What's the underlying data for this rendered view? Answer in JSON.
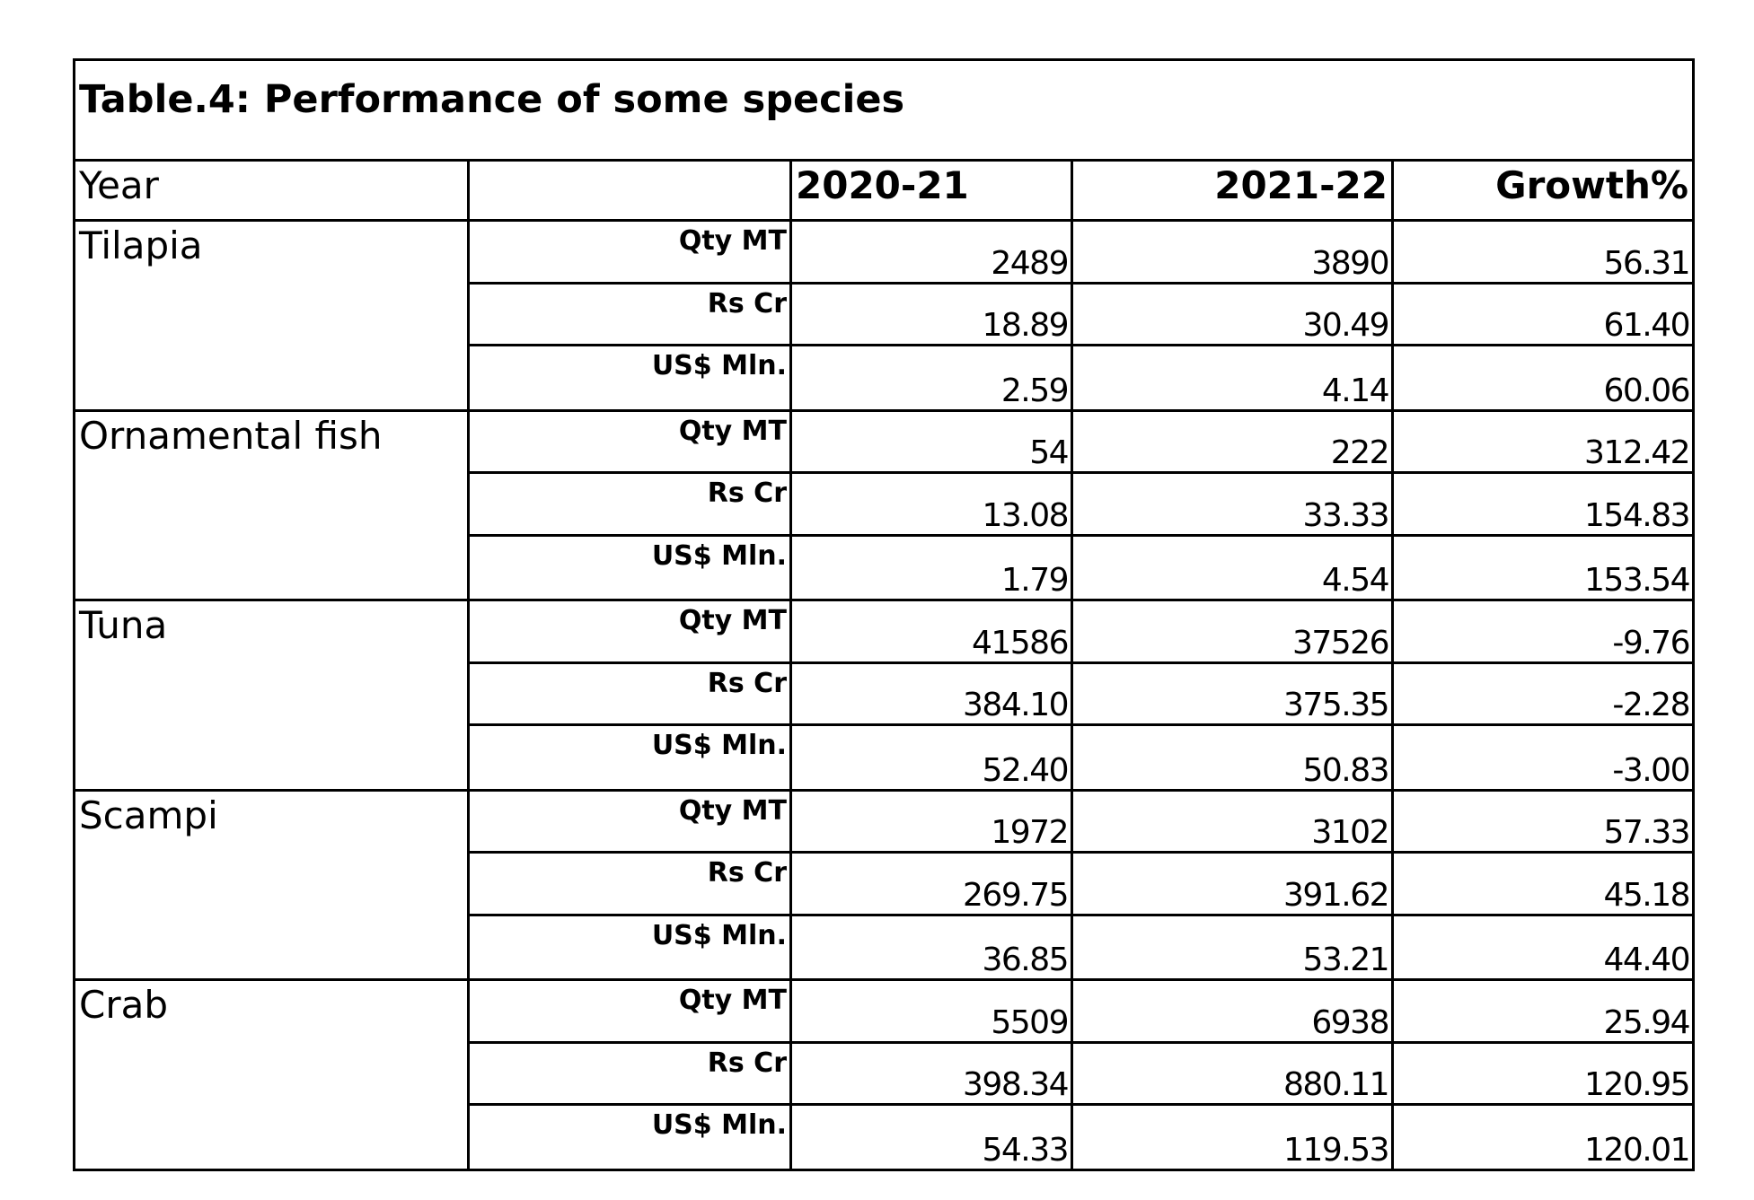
{
  "title": "Table.4: Performance of some species",
  "header": {
    "year": "Year",
    "unit": "",
    "y1": "2020-21",
    "y2": "2021-22",
    "growth": "Growth%"
  },
  "species": [
    {
      "name": "Tilapia",
      "rows": [
        {
          "unit": "Qty MT",
          "y1": "2489",
          "y2": "3890",
          "growth": "56.31"
        },
        {
          "unit": "Rs Cr",
          "y1": "18.89",
          "y2": "30.49",
          "growth": "61.40"
        },
        {
          "unit": "US$ Mln.",
          "y1": "2.59",
          "y2": "4.14",
          "growth": "60.06"
        }
      ]
    },
    {
      "name": "Ornamental fish",
      "rows": [
        {
          "unit": "Qty MT",
          "y1": "54",
          "y2": "222",
          "growth": "312.42"
        },
        {
          "unit": "Rs Cr",
          "y1": "13.08",
          "y2": "33.33",
          "growth": "154.83"
        },
        {
          "unit": "US$ Mln.",
          "y1": "1.79",
          "y2": "4.54",
          "growth": "153.54"
        }
      ]
    },
    {
      "name": "Tuna",
      "rows": [
        {
          "unit": "Qty MT",
          "y1": "41586",
          "y2": "37526",
          "growth": "-9.76"
        },
        {
          "unit": "Rs Cr",
          "y1": "384.10",
          "y2": "375.35",
          "growth": "-2.28"
        },
        {
          "unit": "US$ Mln.",
          "y1": "52.40",
          "y2": "50.83",
          "growth": "-3.00"
        }
      ]
    },
    {
      "name": "Scampi",
      "rows": [
        {
          "unit": "Qty MT",
          "y1": "1972",
          "y2": "3102",
          "growth": "57.33"
        },
        {
          "unit": "Rs Cr",
          "y1": "269.75",
          "y2": "391.62",
          "growth": "45.18"
        },
        {
          "unit": "US$ Mln.",
          "y1": "36.85",
          "y2": "53.21",
          "growth": "44.40"
        }
      ]
    },
    {
      "name": "Crab",
      "rows": [
        {
          "unit": "Qty MT",
          "y1": "5509",
          "y2": "6938",
          "growth": "25.94"
        },
        {
          "unit": "Rs Cr",
          "y1": "398.34",
          "y2": "880.11",
          "growth": "120.95"
        },
        {
          "unit": "US$ Mln.",
          "y1": "54.33",
          "y2": "119.53",
          "growth": "120.01"
        }
      ]
    }
  ]
}
